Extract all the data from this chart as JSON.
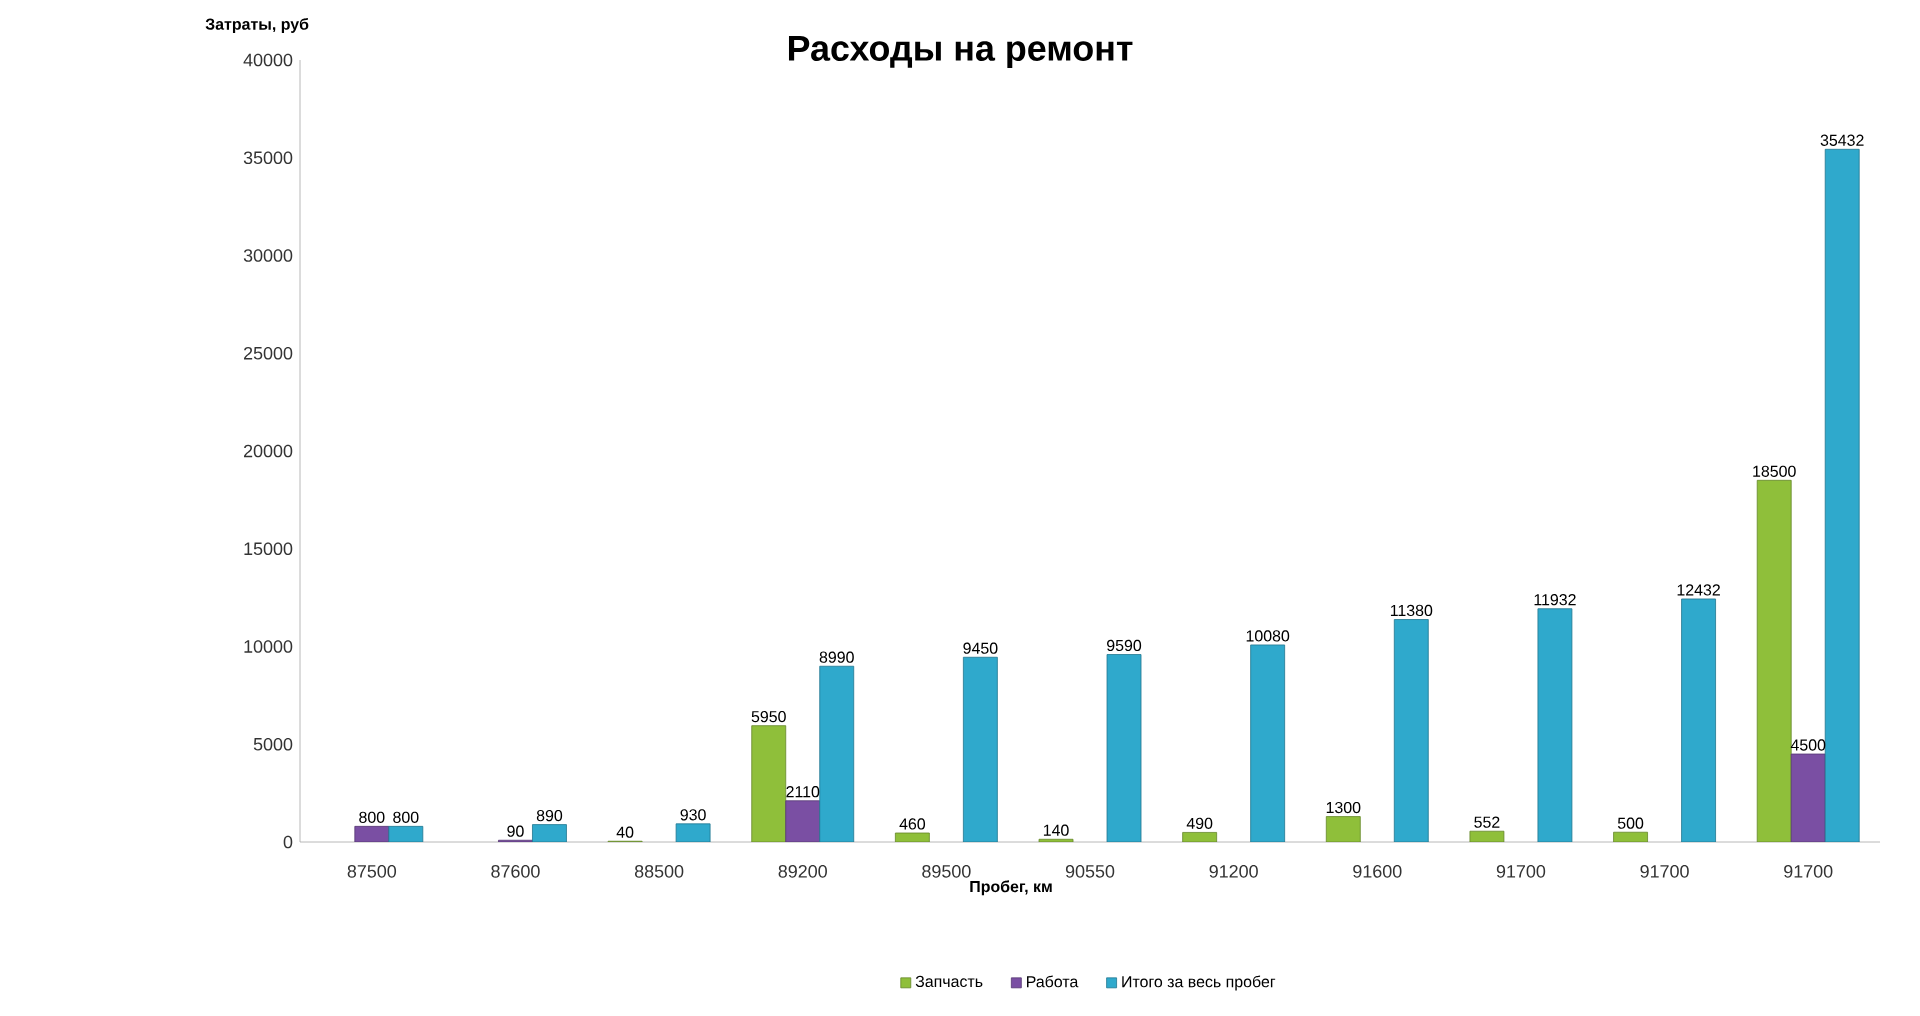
{
  "chart_data": {
    "type": "bar",
    "title": "Расходы на ремонт",
    "xlabel": "Пробег, км",
    "ylabel": "Затраты,  руб",
    "categories": [
      "87500",
      "87600",
      "88500",
      "89200",
      "89500",
      "90550",
      "91200",
      "91600",
      "91700",
      "91700",
      "91700"
    ],
    "series": [
      {
        "name": "Запчасть",
        "color": "#8fbf3a",
        "values": [
          null,
          null,
          40,
          5950,
          460,
          140,
          490,
          1300,
          552,
          500,
          18500
        ]
      },
      {
        "name": "Работа",
        "color": "#7a4fa3",
        "values": [
          800,
          90,
          null,
          2110,
          null,
          null,
          null,
          null,
          null,
          null,
          4500
        ]
      },
      {
        "name": "Итого за весь пробег",
        "color": "#2fa9cc",
        "values": [
          800,
          890,
          930,
          8990,
          9450,
          9590,
          10080,
          11380,
          11932,
          12432,
          35432
        ]
      }
    ],
    "ylim": [
      0,
      40000
    ],
    "yticks": [
      0,
      5000,
      10000,
      15000,
      20000,
      25000,
      30000,
      35000,
      40000
    ],
    "data_labels": true,
    "legend": "bottom",
    "grid": false
  }
}
